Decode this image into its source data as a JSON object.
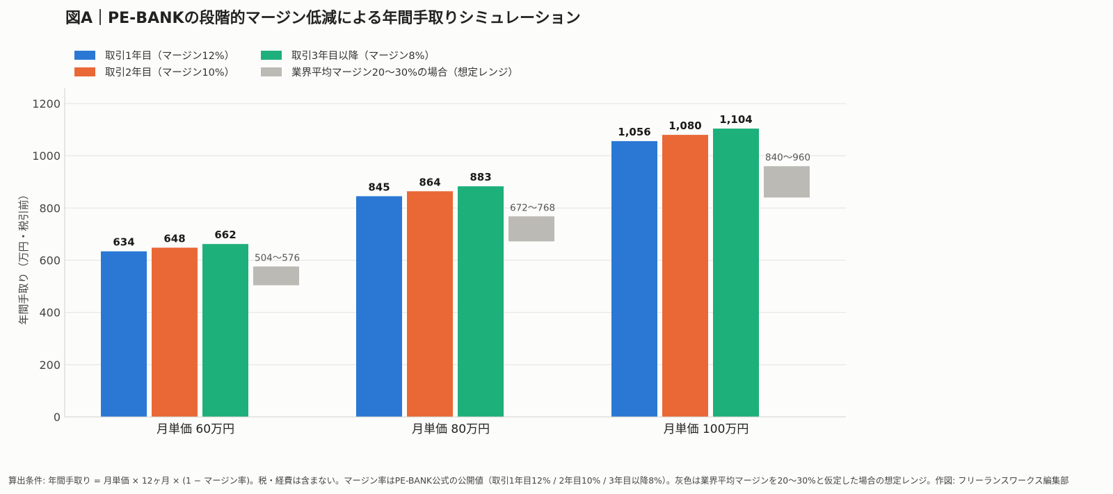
{
  "title": "図A｜PE-BANKの段階的マージン低減による年間手取りシミュレーション",
  "colors": {
    "year1": "#2a78d4",
    "year2": "#ea6836",
    "year3": "#1db07a",
    "range": "#bcbab4",
    "grid": "#e3e3e0"
  },
  "chart_data": {
    "type": "bar",
    "ylabel": "年間手取り（万円・税引前）",
    "ylim": [
      0,
      1250
    ],
    "yticks": [
      0,
      200,
      400,
      600,
      800,
      1000,
      1200
    ],
    "grid": "horizontal",
    "legend_position": "top-left",
    "categories": [
      "月単価 60万円",
      "月単価 80万円",
      "月単価 100万円"
    ],
    "series": [
      {
        "name": "取引1年目（マージン12%）",
        "color_key": "year1",
        "values": [
          634,
          845,
          1056
        ],
        "labels": [
          "634",
          "845",
          "1,056"
        ]
      },
      {
        "name": "取引2年目（マージン10%）",
        "color_key": "year2",
        "values": [
          648,
          864,
          1080
        ],
        "labels": [
          "648",
          "864",
          "1,080"
        ]
      },
      {
        "name": "取引3年目以降（マージン8%）",
        "color_key": "year3",
        "values": [
          662,
          883,
          1104
        ],
        "labels": [
          "662",
          "883",
          "1,104"
        ]
      }
    ],
    "range_series": {
      "name": "業界平均マージン20〜30%の場合（想定レンジ）",
      "color_key": "range",
      "ranges": [
        [
          504,
          576
        ],
        [
          672,
          768
        ],
        [
          840,
          960
        ]
      ],
      "labels": [
        "504〜576",
        "672〜768",
        "840〜960"
      ]
    }
  },
  "footnote": "算出条件: 年間手取り = 月単価 × 12ヶ月 × (1 − マージン率)。税・経費は含まない。マージン率はPE-BANK公式の公開値（取引1年目12% / 2年目10% / 3年目以降8%）。灰色は業界平均マージンを20〜30%と仮定した場合の想定レンジ。作図: フリーランスワークス編集部"
}
